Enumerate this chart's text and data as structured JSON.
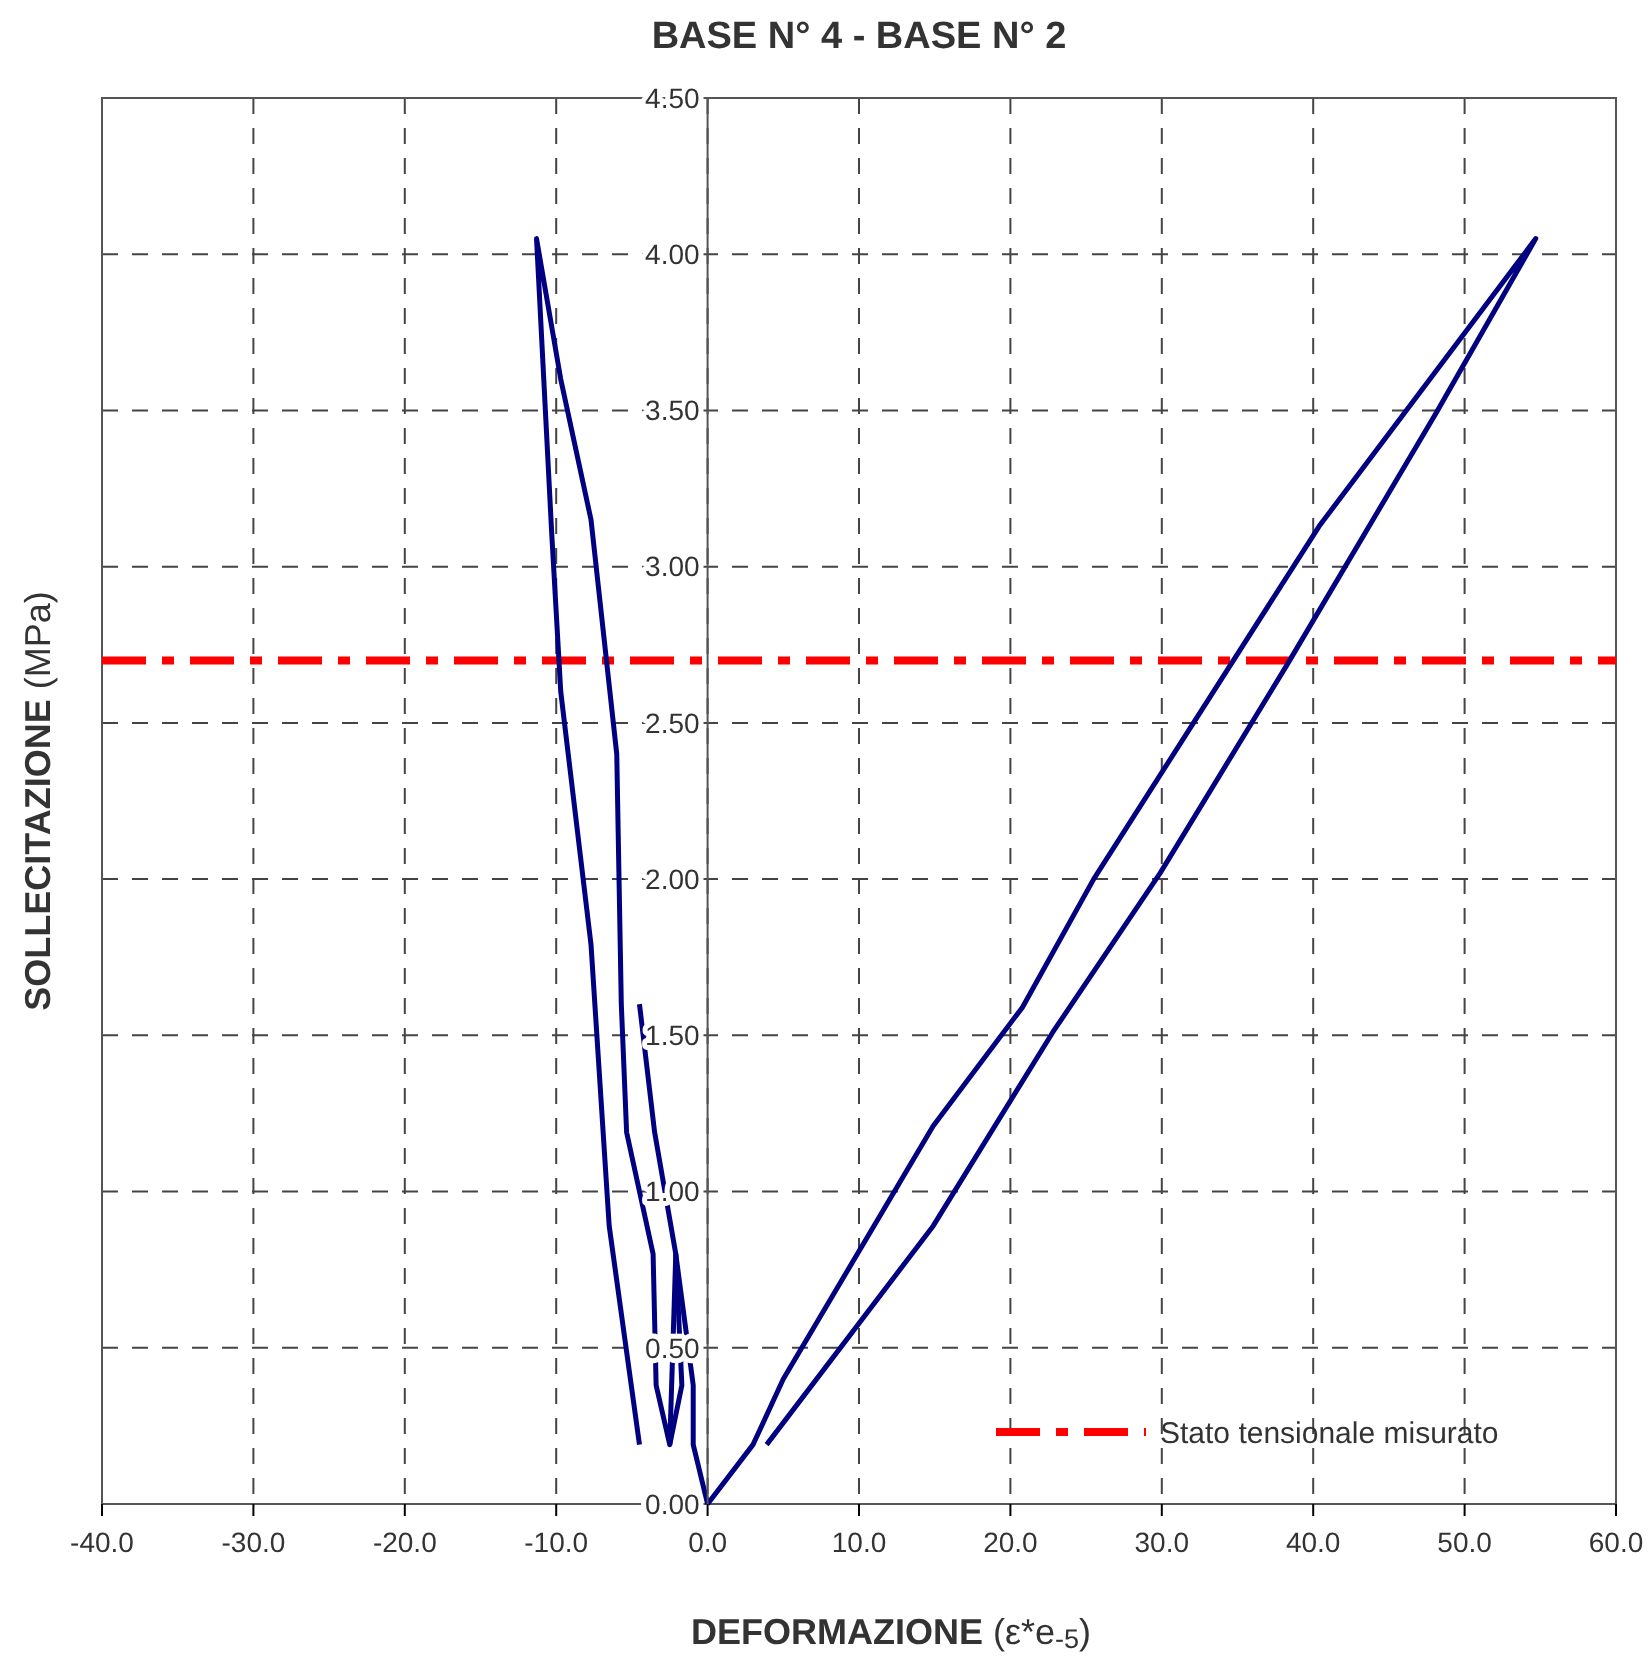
{
  "chart_data": {
    "type": "line",
    "title": "BASE N° 4 - BASE N° 2",
    "xlabel": "DEFORMAZIONE (ε*e$_{-5}$)",
    "ylabel": "SOLLECITAZIONE (MPa)",
    "series": [
      {
        "color": "#000080",
        "x": [
          0,
          -0.95,
          -0.95,
          -2.1,
          -2.5,
          -3.4,
          -3.6,
          -5.35,
          -5.7,
          -6.0,
          -7.7,
          -9.7,
          -11.3,
          -10.3,
          -9.7,
          -7.7,
          -6.5,
          -4.5
        ],
        "values": [
          0,
          0.19,
          0.38,
          0.8,
          0.19,
          0.38,
          0.8,
          1.19,
          1.6,
          2.4,
          3.15,
          3.6,
          4.05,
          3.11,
          2.6,
          1.79,
          0.89,
          0.19
        ]
      },
      {
        "color": "#000080",
        "x": [
          -4.5,
          -3.5,
          -2.1,
          -1.7,
          -2.5
        ],
        "values": [
          1.6,
          1.19,
          0.8,
          0.38,
          0.19
        ]
      },
      {
        "color": "#000080",
        "x": [
          0,
          3.0,
          5.0,
          14.9,
          20.8,
          25.5,
          40.4,
          54.7,
          48.1,
          38.2,
          29.9,
          22.8,
          14.9,
          3.9
        ],
        "values": [
          0,
          0.19,
          0.4,
          1.21,
          1.59,
          2.0,
          3.13,
          4.05,
          3.49,
          2.68,
          2.02,
          1.51,
          0.89,
          0.19
        ]
      }
    ],
    "xlim": [
      -40,
      60
    ],
    "xticks": [
      {
        "value": -40,
        "label": "-40.0"
      },
      {
        "value": -30,
        "label": "-30.0"
      },
      {
        "value": -20,
        "label": "-20.0"
      },
      {
        "value": -10,
        "label": "-10.0"
      },
      {
        "value": 0,
        "label": "0.0"
      },
      {
        "value": 10,
        "label": "10.0"
      },
      {
        "value": 20,
        "label": "20.0"
      },
      {
        "value": 30,
        "label": "30.0"
      },
      {
        "value": 40,
        "label": "40.0"
      },
      {
        "value": 50,
        "label": "50.0"
      },
      {
        "value": 60,
        "label": "60.0"
      }
    ],
    "ylim": [
      0,
      4.5
    ],
    "yticks": [
      {
        "value": 0,
        "label": "0.00"
      },
      {
        "value": 0.5,
        "label": "0.50"
      },
      {
        "value": 1,
        "label": "1.00"
      },
      {
        "value": 1.5,
        "label": "1.50"
      },
      {
        "value": 2,
        "label": "2.00"
      },
      {
        "value": 2.5,
        "label": "2.50"
      },
      {
        "value": 3,
        "label": "3.00"
      },
      {
        "value": 3.5,
        "label": "3.50"
      },
      {
        "value": 4,
        "label": "4.00"
      },
      {
        "value": 4.5,
        "label": "4.50"
      }
    ],
    "ref_lines": [
      {
        "axis": "y",
        "value": 2.7,
        "label": "Stato tensionale misurato",
        "color": "#ff0000",
        "line_style": "dashdot"
      }
    ],
    "grid": true,
    "legend": "bottom right",
    "marker": "none",
    "line_style": "solid"
  }
}
